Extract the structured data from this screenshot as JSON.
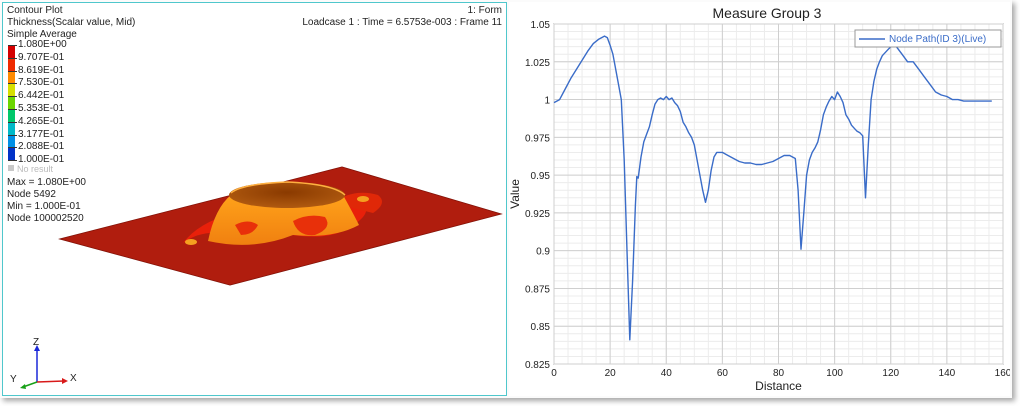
{
  "contour": {
    "title": "Contour Plot",
    "form": "1: Form",
    "result_type": "Thickness(Scalar value, Mid)",
    "loadcase": "Loadcase 1 : Time = 6.5753e-003 : Frame 11",
    "averaging": "Simple Average",
    "legend": [
      {
        "label": "1.080E+00",
        "color": "#d40000"
      },
      {
        "label": "9.707E-01",
        "color": "#ef2a00"
      },
      {
        "label": "8.619E-01",
        "color": "#ff8a00"
      },
      {
        "label": "7.530E-01",
        "color": "#d6df00"
      },
      {
        "label": "6.442E-01",
        "color": "#6bd600"
      },
      {
        "label": "5.353E-01",
        "color": "#00c86a"
      },
      {
        "label": "4.265E-01",
        "color": "#00b9c8"
      },
      {
        "label": "3.177E-01",
        "color": "#0090e6"
      },
      {
        "label": "2.088E-01",
        "color": "#0032c8"
      },
      {
        "label": "1.000E-01",
        "color": "#000090"
      }
    ],
    "no_result": "No result",
    "max_value": "Max = 1.080E+00",
    "max_node": "Node 5492",
    "min_value": "Min = 1.000E-01",
    "min_node": "Node 100002520",
    "triad": {
      "z": "Z",
      "y": "Y",
      "x": "X"
    }
  },
  "chart_data": {
    "type": "line",
    "title": "Measure Group 3",
    "xlabel": "Distance",
    "ylabel": "Value",
    "xlim": [
      0,
      160
    ],
    "ylim": [
      0.825,
      1.05
    ],
    "xticks": [
      "0",
      "20",
      "40",
      "60",
      "80",
      "100",
      "120",
      "140",
      "160"
    ],
    "yticks": [
      "0.825",
      "0.85",
      "0.875",
      "0.9",
      "0.925",
      "0.95",
      "0.975",
      "1",
      "1.025",
      "1.05"
    ],
    "grid": true,
    "legend_position": "top-right",
    "series": [
      {
        "name": "Node Path(ID 3)(Live)",
        "color": "#3a6cc8",
        "x": [
          0,
          2,
          4,
          6,
          8,
          10,
          12,
          14,
          16,
          18,
          19,
          20,
          21,
          22,
          23,
          24,
          25,
          26,
          27,
          28,
          29,
          29.5,
          30,
          31,
          32,
          33,
          34,
          35,
          36,
          37,
          38,
          39,
          40,
          41,
          42,
          43,
          44,
          45,
          46,
          47,
          48,
          49,
          50,
          51,
          52,
          53,
          54,
          55,
          56,
          57,
          58,
          60,
          62,
          64,
          66,
          68,
          70,
          72,
          74,
          76,
          78,
          80,
          82,
          84,
          86,
          87,
          88,
          89,
          90,
          91,
          92,
          93,
          94,
          95,
          96,
          97,
          98,
          99,
          100,
          101,
          102,
          103,
          104,
          105,
          106,
          107,
          108,
          109,
          110,
          111,
          112,
          113,
          114,
          115,
          116,
          117,
          118,
          119,
          120,
          121,
          122,
          124,
          126,
          128,
          130,
          132,
          134,
          136,
          138,
          140,
          142,
          144,
          146,
          148,
          150,
          152,
          154,
          156
        ],
        "y": [
          0.998,
          1.0,
          1.007,
          1.014,
          1.02,
          1.026,
          1.032,
          1.037,
          1.04,
          1.042,
          1.041,
          1.036,
          1.03,
          1.02,
          1.01,
          1.0,
          0.96,
          0.9,
          0.841,
          0.88,
          0.93,
          0.949,
          0.948,
          0.962,
          0.972,
          0.977,
          0.982,
          0.99,
          0.997,
          1.0,
          1.001,
          1.0,
          1.002,
          1.0,
          1.001,
          0.998,
          0.996,
          0.992,
          0.985,
          0.982,
          0.978,
          0.975,
          0.97,
          0.96,
          0.95,
          0.94,
          0.932,
          0.94,
          0.953,
          0.962,
          0.965,
          0.965,
          0.963,
          0.961,
          0.959,
          0.958,
          0.958,
          0.957,
          0.957,
          0.958,
          0.959,
          0.961,
          0.963,
          0.963,
          0.961,
          0.94,
          0.901,
          0.925,
          0.95,
          0.96,
          0.965,
          0.968,
          0.972,
          0.98,
          0.99,
          0.995,
          0.999,
          1.002,
          1.0,
          1.005,
          1.002,
          0.998,
          0.99,
          0.987,
          0.983,
          0.981,
          0.979,
          0.978,
          0.976,
          0.935,
          0.97,
          1.0,
          1.012,
          1.02,
          1.025,
          1.029,
          1.031,
          1.033,
          1.035,
          1.036,
          1.035,
          1.03,
          1.025,
          1.025,
          1.02,
          1.015,
          1.01,
          1.005,
          1.003,
          1.002,
          1.0,
          1.0,
          0.999,
          0.999,
          0.999,
          0.999,
          0.999,
          0.999
        ]
      }
    ]
  }
}
